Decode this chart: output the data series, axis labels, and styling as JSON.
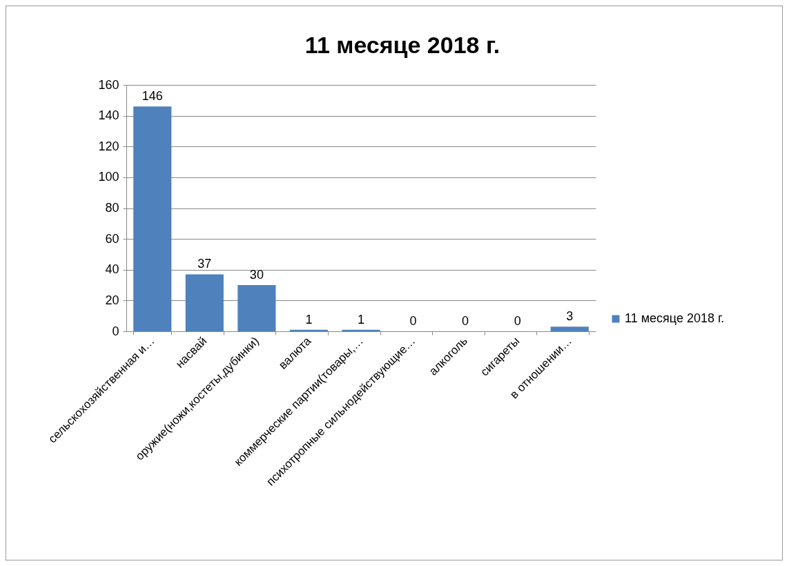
{
  "chart_data": {
    "type": "bar",
    "title": "11 месяце 2018 г.",
    "categories": [
      "сельскохозяйственная и…",
      "насвай",
      "оружие(ножи,костеты,дубинки)",
      "валюта",
      "коммерческие партии(товары,…",
      "психотропные  сильнодействующие…",
      "алкоголь",
      "сигареты",
      "в отношении…"
    ],
    "series": [
      {
        "name": "11 месяце 2018 г.",
        "color": "#4f81bd",
        "values": [
          146,
          37,
          30,
          1,
          1,
          0,
          0,
          0,
          3
        ]
      }
    ],
    "ylim": [
      0,
      160
    ],
    "yticks": [
      0,
      20,
      40,
      60,
      80,
      100,
      120,
      140,
      160
    ],
    "grid": "y",
    "legend": "right",
    "data_labels": true
  }
}
